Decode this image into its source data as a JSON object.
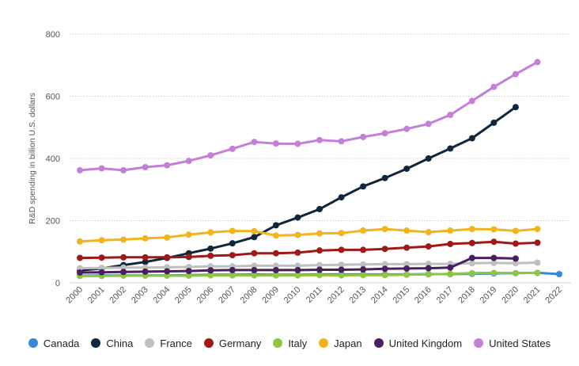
{
  "chart_data": {
    "type": "line",
    "title": "",
    "xlabel": "",
    "ylabel": "R&D spending in billion U.S. dollars",
    "ylim": [
      0,
      800
    ],
    "yticks": [
      0,
      200,
      400,
      600,
      800
    ],
    "grid": true,
    "legend_position": "bottom",
    "categories": [
      "2000",
      "2001",
      "2002",
      "2003",
      "2004",
      "2005",
      "2006",
      "2007",
      "2008",
      "2009",
      "2010",
      "2011",
      "2012",
      "2013",
      "2014",
      "2015",
      "2016",
      "2017",
      "2018",
      "2019",
      "2020",
      "2021",
      "2022"
    ],
    "series": [
      {
        "name": "Canada",
        "color": "#3a87d6",
        "values": [
          23,
          24,
          24,
          24,
          24,
          25,
          26,
          26,
          27,
          26,
          26,
          27,
          27,
          27,
          27,
          27,
          28,
          28,
          29,
          30,
          31,
          32,
          28
        ]
      },
      {
        "name": "China",
        "color": "#10263b",
        "values": [
          40,
          46,
          57,
          67,
          80,
          95,
          110,
          127,
          147,
          185,
          210,
          237,
          275,
          310,
          337,
          367,
          400,
          432,
          465,
          515,
          565,
          null,
          null
        ]
      },
      {
        "name": "France",
        "color": "#bfbfbf",
        "values": [
          47,
          48,
          49,
          49,
          50,
          51,
          53,
          53,
          55,
          55,
          55,
          57,
          58,
          59,
          60,
          60,
          61,
          61,
          63,
          64,
          63,
          65,
          null
        ]
      },
      {
        "name": "Germany",
        "color": "#a11818",
        "values": [
          80,
          81,
          82,
          82,
          82,
          83,
          87,
          89,
          95,
          95,
          97,
          104,
          106,
          106,
          109,
          113,
          117,
          125,
          128,
          132,
          126,
          129,
          null
        ]
      },
      {
        "name": "Italy",
        "color": "#8ec63f",
        "values": [
          22,
          22,
          23,
          23,
          23,
          23,
          24,
          24,
          24,
          24,
          24,
          25,
          24,
          25,
          25,
          26,
          27,
          29,
          31,
          32,
          31,
          32,
          null
        ]
      },
      {
        "name": "Japan",
        "color": "#f1b41f",
        "values": [
          133,
          137,
          139,
          143,
          146,
          155,
          162,
          167,
          166,
          152,
          154,
          159,
          160,
          168,
          173,
          168,
          163,
          168,
          173,
          172,
          167,
          173,
          null
        ]
      },
      {
        "name": "United Kingdom",
        "color": "#4a1f5e",
        "values": [
          33,
          34,
          35,
          36,
          37,
          38,
          40,
          41,
          41,
          41,
          41,
          42,
          42,
          43,
          45,
          46,
          47,
          49,
          80,
          80,
          78,
          null,
          null
        ]
      },
      {
        "name": "United States",
        "color": "#c47fd6",
        "values": [
          362,
          368,
          362,
          372,
          378,
          392,
          410,
          431,
          453,
          448,
          447,
          459,
          455,
          469,
          481,
          495,
          511,
          540,
          585,
          630,
          671,
          710,
          null
        ]
      }
    ]
  }
}
